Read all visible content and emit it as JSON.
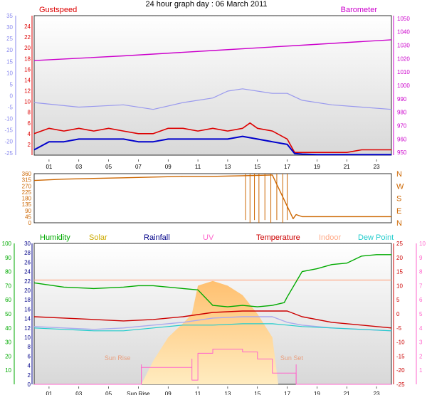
{
  "title": "24 hour graph day : 06 March 2011",
  "colors": {
    "gust": "#dd0000",
    "wind": "#0000cc",
    "temp_axis_blue": "#8888ee",
    "barometer": "#cc00cc",
    "direction": "#cc6600",
    "humidity": "#00aa00",
    "solar": "#ccaa00",
    "rainfall": "#000088",
    "uv": "#ff66cc",
    "temperature": "#cc0000",
    "indoor": "#ffaa88",
    "dewpoint": "#22cccc",
    "sun": "#ffcc66"
  },
  "chart_data": [
    {
      "type": "line",
      "panel": "wind-barometer",
      "legend": {
        "left": "Gustspeed",
        "right": "Barometer"
      },
      "x_ticks": [
        "01",
        "03",
        "05",
        "07",
        "09",
        "11",
        "13",
        "15",
        "17",
        "19",
        "21",
        "23"
      ],
      "x_range_hours": [
        0,
        24
      ],
      "left_axis_red": {
        "ticks": [
          "2",
          "4",
          "6",
          "8",
          "10",
          "12",
          "14",
          "16",
          "18",
          "20",
          "22",
          "24"
        ],
        "range": [
          0,
          26
        ]
      },
      "left_axis_blue": {
        "ticks": [
          "-25",
          "-20",
          "-15",
          "-10",
          "-5",
          "0",
          "5",
          "10",
          "15",
          "20",
          "25",
          "30",
          "35"
        ],
        "range": [
          -26,
          35
        ]
      },
      "right_axis": {
        "ticks": [
          "950",
          "960",
          "970",
          "980",
          "990",
          "1000",
          "1010",
          "1020",
          "1030",
          "1040",
          "1050"
        ],
        "range": [
          948,
          1052
        ]
      },
      "series": [
        {
          "name": "Gustspeed",
          "axis": "left_red",
          "x": [
            0,
            1,
            2,
            3,
            4,
            5,
            6,
            7,
            8,
            9,
            10,
            11,
            12,
            13,
            14,
            14.5,
            15,
            16,
            17,
            17.5,
            18,
            19,
            20,
            21,
            22,
            23,
            24
          ],
          "values": [
            4,
            5,
            4.5,
            5,
            4.5,
            5,
            4.5,
            4,
            4,
            5,
            5,
            4.5,
            5,
            4.5,
            5,
            6,
            5,
            4.5,
            3,
            0.5,
            0.5,
            0.5,
            0.5,
            0.5,
            1,
            1,
            1
          ]
        },
        {
          "name": "Barometer",
          "axis": "right",
          "x": [
            0,
            6,
            12,
            18,
            24
          ],
          "values": [
            1018.5,
            1022,
            1026,
            1030,
            1034
          ]
        },
        {
          "x": [
            0,
            1,
            2,
            3,
            4,
            5,
            6,
            7,
            8,
            9,
            10,
            11,
            12,
            13,
            14,
            15,
            16,
            17,
            17.5,
            18,
            19,
            20,
            21,
            22,
            23,
            24
          ],
          "axis": "left_red",
          "values": [
            1,
            2.5,
            2.5,
            3,
            3,
            3,
            3,
            2.5,
            2.5,
            3,
            3,
            3,
            3,
            3,
            3.5,
            3,
            2.5,
            2,
            0.3,
            0.2,
            0.1,
            0.1,
            0.1,
            0.1,
            0.1,
            0.1
          ]
        },
        {
          "x": [
            0,
            3,
            6,
            8,
            10,
            12,
            13,
            14,
            16,
            17,
            18,
            20,
            22,
            24
          ],
          "axis": "left_blue",
          "values": [
            -3,
            -5,
            -4,
            -6,
            -3,
            -1,
            2,
            3,
            1,
            1,
            -2,
            -4,
            -5,
            -6
          ]
        }
      ]
    },
    {
      "type": "line",
      "panel": "wind-direction",
      "left_axis": {
        "ticks": [
          "0",
          "45",
          "90",
          "135",
          "180",
          "225",
          "270",
          "315",
          "360"
        ],
        "range": [
          0,
          360
        ]
      },
      "right_axis": {
        "ticks": [
          "N",
          "W",
          "S",
          "E",
          "N"
        ]
      },
      "series": [
        {
          "x": [
            0,
            2,
            4,
            6,
            8,
            10,
            12,
            14,
            16,
            17.4,
            17.6,
            18,
            20,
            24
          ],
          "values": [
            310,
            320,
            325,
            330,
            335,
            340,
            340,
            345,
            350,
            30,
            60,
            45,
            45,
            45
          ]
        }
      ]
    },
    {
      "type": "line",
      "panel": "temperature-humidity",
      "legend": [
        "Humidity",
        "Solar",
        "Rainfall",
        "UV",
        "Temperature",
        "Indoor",
        "Dew Point"
      ],
      "x_ticks": [
        "01",
        "03",
        "05",
        "Sun Rise",
        "09",
        "11",
        "13",
        "15",
        "17",
        "19",
        "21",
        "23"
      ],
      "annotations": [
        "Sun Rise",
        "Sun Set"
      ],
      "axis_humidity": {
        "ticks": [
          "10",
          "20",
          "30",
          "40",
          "50",
          "60",
          "70",
          "80",
          "90",
          "100"
        ],
        "range": [
          0,
          100
        ]
      },
      "axis_rain": {
        "ticks": [
          "0",
          "2",
          "4",
          "6",
          "8",
          "10",
          "12",
          "14",
          "16",
          "18",
          "20",
          "22",
          "24",
          "26",
          "28",
          "30"
        ],
        "range": [
          0,
          30
        ]
      },
      "axis_temp": {
        "ticks": [
          "-25",
          "-20",
          "-15",
          "-10",
          "-5",
          "0",
          "5",
          "10",
          "15",
          "20",
          "25"
        ],
        "range": [
          -25,
          25
        ]
      },
      "axis_uv": {
        "ticks": [
          "1",
          "2",
          "3",
          "4",
          "5",
          "6",
          "7",
          "8",
          "9",
          "10"
        ],
        "range": [
          0,
          10
        ]
      },
      "series": [
        {
          "name": "Humidity",
          "axis": "humidity",
          "x": [
            0,
            2,
            4,
            6,
            7,
            8,
            10,
            11,
            12,
            13,
            14,
            15,
            16,
            16.8,
            17,
            18,
            19,
            20,
            21,
            22,
            23,
            24
          ],
          "values": [
            72,
            69,
            68,
            69,
            70,
            70,
            68,
            67,
            56,
            55,
            56,
            55,
            56,
            58,
            62,
            80,
            82,
            85,
            86,
            91,
            92,
            92
          ]
        },
        {
          "name": "Indoor",
          "axis": "temp",
          "x": [
            0,
            6,
            12,
            18,
            24
          ],
          "values": [
            12,
            12,
            12,
            12,
            12
          ]
        },
        {
          "name": "Temperature",
          "axis": "temp",
          "x": [
            0,
            2,
            4,
            6,
            8,
            10,
            12,
            14,
            16,
            17,
            18,
            20,
            22,
            24
          ],
          "values": [
            -1,
            -1.5,
            -2,
            -2.5,
            -2,
            -1,
            0.5,
            1,
            1,
            1,
            -1,
            -3,
            -4,
            -5
          ]
        },
        {
          "name": "Dew Point",
          "axis": "temp",
          "x": [
            0,
            2,
            4,
            6,
            8,
            10,
            12,
            14,
            16,
            17,
            18,
            20,
            22,
            24
          ],
          "values": [
            -5,
            -5.5,
            -6,
            -6,
            -5,
            -4,
            -4,
            -3.5,
            -3.5,
            -4,
            -4.5,
            -5,
            -5.5,
            -6
          ]
        },
        {
          "axis": "temp",
          "x": [
            0,
            2,
            4,
            6,
            8,
            10,
            12,
            14,
            16,
            17,
            18,
            20,
            22,
            24
          ],
          "values": [
            -4.5,
            -5,
            -5.5,
            -5,
            -4,
            -3,
            -1.5,
            -1,
            -1,
            -3,
            -4,
            -5,
            -5.5,
            -6
          ]
        },
        {
          "name": "Solar",
          "x": [
            7.2,
            8,
            9,
            10,
            10.6,
            11,
            12,
            13,
            14,
            15,
            16,
            16.4,
            17.6
          ],
          "values": [
            0,
            5,
            10,
            13,
            15,
            21,
            22,
            21,
            19,
            15,
            10,
            0,
            0
          ]
        },
        {
          "name": "UV",
          "axis": "uv",
          "x": [
            0,
            7.2,
            7.2,
            10.6,
            10.6,
            11,
            11,
            12,
            14,
            15,
            16,
            17.6,
            17.6,
            24
          ],
          "values": [
            0,
            0,
            1.2,
            1.8,
            0.3,
            0.3,
            2.2,
            2.5,
            2.3,
            1.8,
            0.8,
            0.4,
            0,
            0
          ]
        }
      ]
    }
  ]
}
